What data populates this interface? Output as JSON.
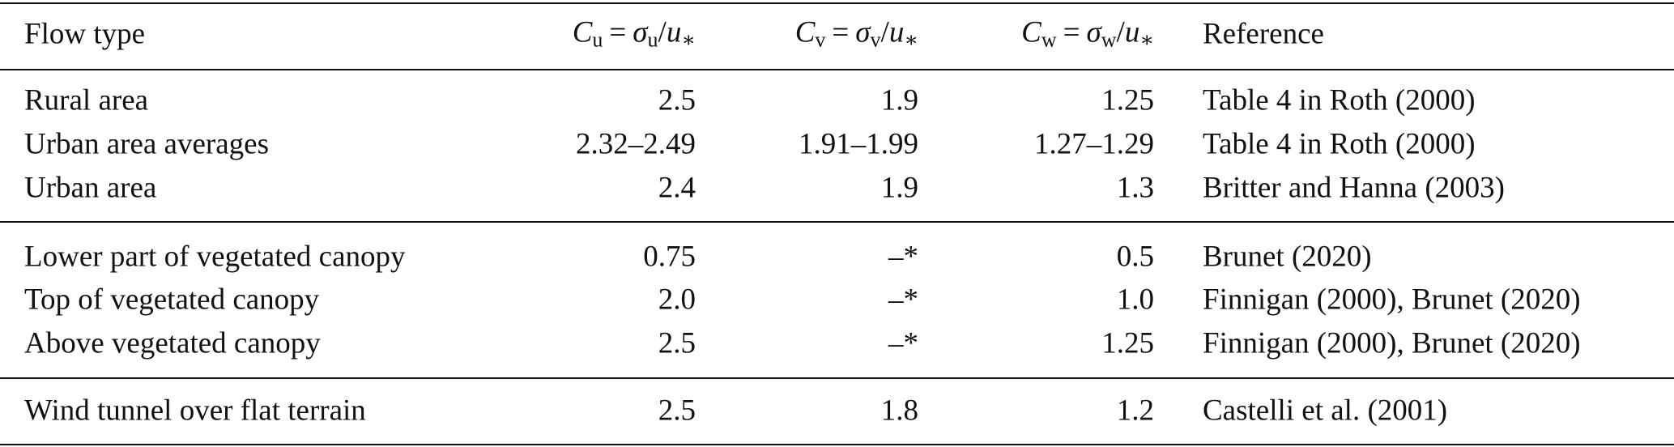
{
  "table": {
    "header": [
      "Flow type",
      [
        "C",
        "u",
        "=",
        "σ",
        "u",
        "/",
        "u",
        "∗"
      ],
      [
        "C",
        "v",
        "=",
        "σ",
        "v",
        "/",
        "u",
        "∗"
      ],
      [
        "C",
        "w",
        "=",
        "σ",
        "w",
        "/",
        "u",
        "∗"
      ],
      "Reference"
    ],
    "groups": [
      [
        [
          "Rural area",
          "2.5",
          "1.9",
          "1.25",
          "Table 4 in Roth (2000)"
        ],
        [
          "Urban area averages",
          "2.32–2.49",
          "1.91–1.99",
          "1.27–1.29",
          "Table 4 in Roth (2000)"
        ],
        [
          "Urban area",
          "2.4",
          "1.9",
          "1.3",
          "Britter and Hanna (2003)"
        ]
      ],
      [
        [
          "Lower part of vegetated canopy",
          "0.75",
          "–*",
          "0.5",
          "Brunet (2020)"
        ],
        [
          "Top of vegetated canopy",
          "2.0",
          "–*",
          "1.0",
          "Finnigan (2000), Brunet (2020)"
        ],
        [
          "Above vegetated canopy",
          "2.5",
          "–*",
          "1.25",
          "Finnigan (2000), Brunet (2020)"
        ]
      ],
      [
        [
          "Wind tunnel over flat terrain",
          "2.5",
          "1.8",
          "1.2",
          "Castelli et al. (2001)"
        ]
      ]
    ]
  }
}
